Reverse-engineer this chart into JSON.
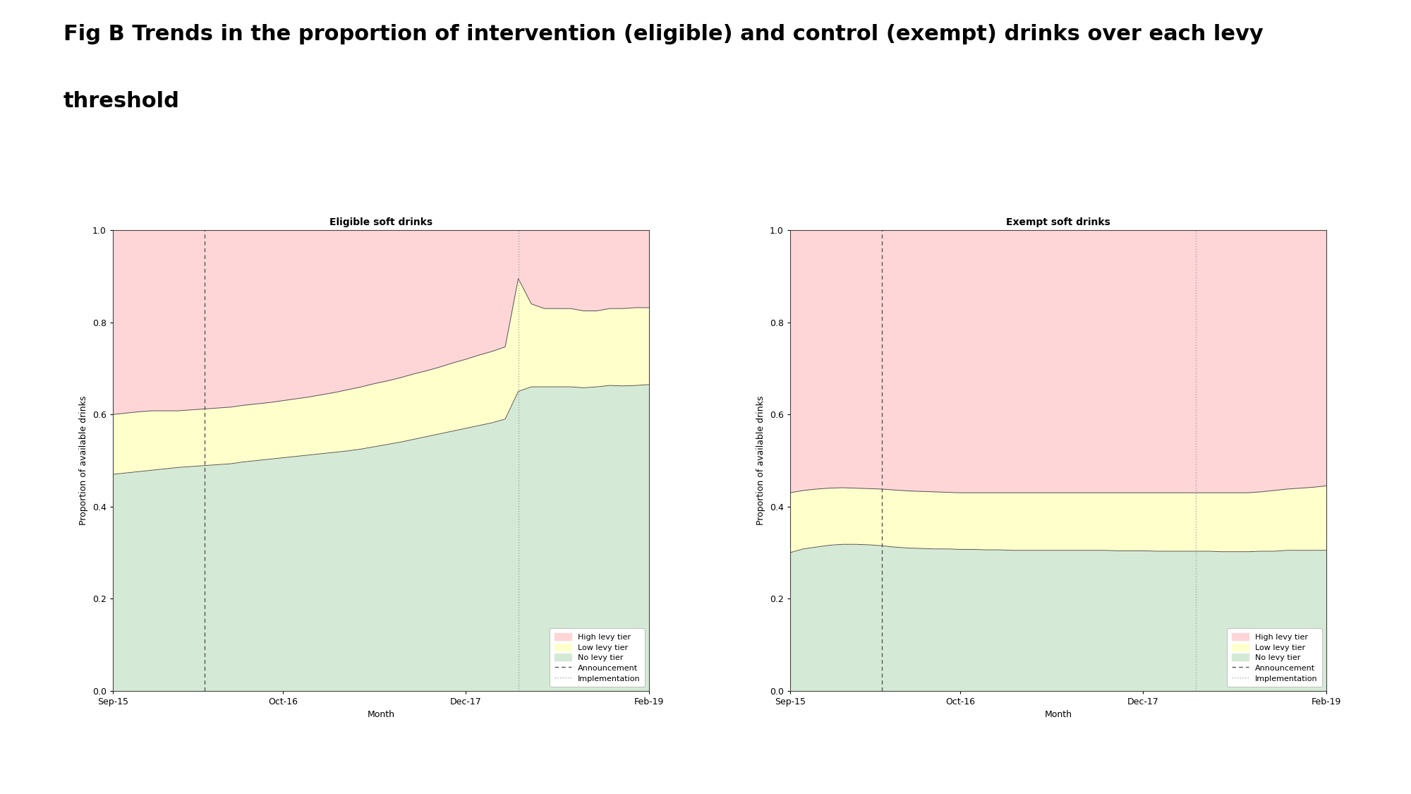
{
  "title_line1": "Fig B Trends in the proportion of intervention (eligible) and control (exempt) drinks over each levy",
  "title_line2": "threshold",
  "left_title": "Eligible soft drinks",
  "right_title": "Exempt soft drinks",
  "ylabel": "Proportion of available drinks",
  "xlabel": "Month",
  "xtick_labels": [
    "Sep-15",
    "Oct-16",
    "Dec-17",
    "Feb-19"
  ],
  "n_months": 42,
  "announcement_month": 7,
  "implementation_month": 31,
  "eligible": {
    "low_boundary": [
      0.47,
      0.473,
      0.476,
      0.479,
      0.482,
      0.485,
      0.487,
      0.489,
      0.491,
      0.493,
      0.497,
      0.5,
      0.503,
      0.506,
      0.509,
      0.512,
      0.515,
      0.518,
      0.521,
      0.525,
      0.53,
      0.535,
      0.54,
      0.546,
      0.552,
      0.558,
      0.564,
      0.57,
      0.576,
      0.582,
      0.59,
      0.65,
      0.66,
      0.66,
      0.66,
      0.66,
      0.658,
      0.66,
      0.663,
      0.662,
      0.663,
      0.665
    ],
    "mid_boundary": [
      0.6,
      0.603,
      0.606,
      0.608,
      0.608,
      0.608,
      0.61,
      0.612,
      0.614,
      0.616,
      0.62,
      0.623,
      0.626,
      0.63,
      0.634,
      0.638,
      0.643,
      0.648,
      0.654,
      0.66,
      0.667,
      0.673,
      0.68,
      0.688,
      0.695,
      0.703,
      0.712,
      0.72,
      0.729,
      0.737,
      0.747,
      0.895,
      0.84,
      0.83,
      0.83,
      0.83,
      0.825,
      0.825,
      0.83,
      0.83,
      0.832,
      0.832
    ]
  },
  "exempt": {
    "low_boundary": [
      0.3,
      0.308,
      0.312,
      0.316,
      0.318,
      0.318,
      0.317,
      0.315,
      0.312,
      0.31,
      0.309,
      0.308,
      0.308,
      0.307,
      0.307,
      0.306,
      0.306,
      0.305,
      0.305,
      0.305,
      0.305,
      0.305,
      0.305,
      0.305,
      0.305,
      0.304,
      0.304,
      0.304,
      0.303,
      0.303,
      0.303,
      0.303,
      0.303,
      0.302,
      0.302,
      0.302,
      0.303,
      0.303,
      0.305,
      0.305,
      0.305,
      0.305
    ],
    "mid_boundary": [
      0.43,
      0.435,
      0.438,
      0.44,
      0.441,
      0.44,
      0.439,
      0.438,
      0.436,
      0.434,
      0.433,
      0.432,
      0.431,
      0.43,
      0.43,
      0.43,
      0.43,
      0.43,
      0.43,
      0.43,
      0.43,
      0.43,
      0.43,
      0.43,
      0.43,
      0.43,
      0.43,
      0.43,
      0.43,
      0.43,
      0.43,
      0.43,
      0.43,
      0.43,
      0.43,
      0.43,
      0.432,
      0.435,
      0.438,
      0.44,
      0.442,
      0.445
    ]
  },
  "color_green": "#d5ead6",
  "color_yellow": "#ffffcc",
  "color_pink": "#ffd6d8",
  "line_color": "#555555",
  "bg_color": "#ffffff",
  "announcement_color": "#555555",
  "implementation_color": "#aaaaaa",
  "legend_font_size": 8,
  "title_fontsize": 22,
  "axis_title_fontsize": 10,
  "axis_label_fontsize": 9,
  "tick_fontsize": 9
}
